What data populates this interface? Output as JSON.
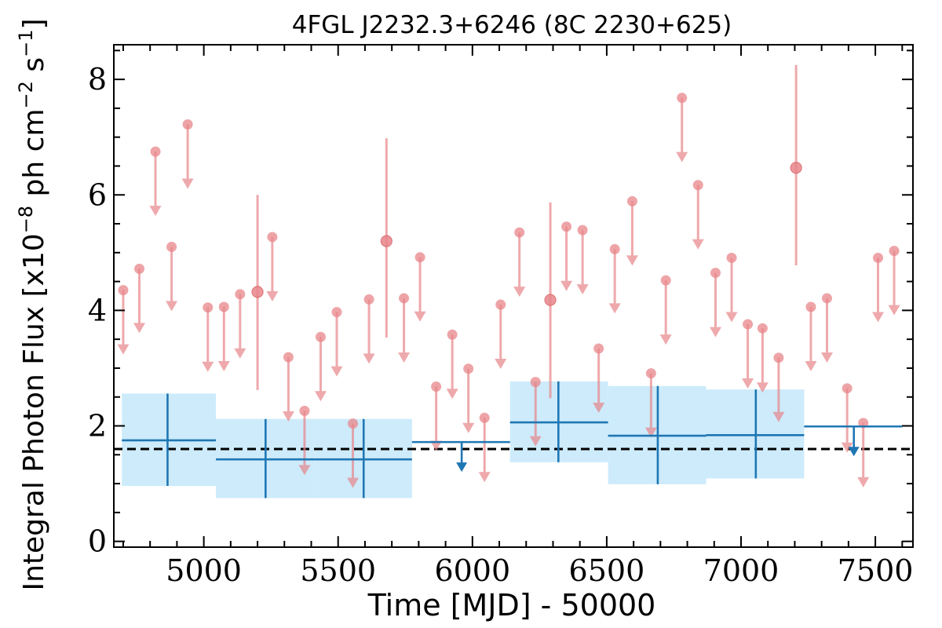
{
  "chart_data": {
    "type": "scatter",
    "title": "4FGL J2232.3+6246 (8C 2230+625)",
    "xlabel": "Time [MJD] - 50000",
    "ylabel": "Integral Photon Flux [x10^-8 ph cm^-2 s^-1]",
    "ylabel_parts": {
      "main": "Integral Photon Flux [x10",
      "exp1": "−8",
      "mid": " ph cm",
      "exp2": "−2",
      "mid2": " s",
      "exp3": "−1",
      "end": "]"
    },
    "xlim": [
      4665,
      7640
    ],
    "ylim": [
      -0.1,
      8.6
    ],
    "xticks": [
      5000,
      5500,
      6000,
      6500,
      7000,
      7500
    ],
    "yticks": [
      0,
      2,
      4,
      6,
      8
    ],
    "grid": false,
    "reference_level": 1.6,
    "colors": {
      "short_bins": "#e8868a",
      "long_bins": "#1f77b4",
      "band_fill": "#cdebfb",
      "reference_line": "#000000"
    },
    "short_bins": {
      "upper_limits": [
        [
          4700,
          4.35
        ],
        [
          4760,
          4.72
        ],
        [
          4820,
          6.75
        ],
        [
          4880,
          5.1
        ],
        [
          4940,
          7.22
        ],
        [
          5015,
          4.05
        ],
        [
          5075,
          4.06
        ],
        [
          5135,
          4.28
        ],
        [
          5255,
          5.27
        ],
        [
          5315,
          3.19
        ],
        [
          5375,
          2.26
        ],
        [
          5435,
          3.54
        ],
        [
          5495,
          3.97
        ],
        [
          5555,
          2.04
        ],
        [
          5615,
          4.19
        ],
        [
          5745,
          4.21
        ],
        [
          5805,
          4.92
        ],
        [
          5865,
          2.68
        ],
        [
          5925,
          3.58
        ],
        [
          5985,
          2.99
        ],
        [
          6045,
          2.14
        ],
        [
          6105,
          4.1
        ],
        [
          6175,
          5.35
        ],
        [
          6235,
          2.76
        ],
        [
          6350,
          5.45
        ],
        [
          6410,
          5.39
        ],
        [
          6470,
          3.34
        ],
        [
          6530,
          5.06
        ],
        [
          6595,
          5.89
        ],
        [
          6665,
          2.91
        ],
        [
          6720,
          4.52
        ],
        [
          6780,
          7.68
        ],
        [
          6840,
          6.17
        ],
        [
          6905,
          4.65
        ],
        [
          6965,
          4.91
        ],
        [
          7025,
          3.76
        ],
        [
          7080,
          3.69
        ],
        [
          7140,
          3.18
        ],
        [
          7260,
          4.06
        ],
        [
          7320,
          4.21
        ],
        [
          7395,
          2.65
        ],
        [
          7455,
          2.05
        ],
        [
          7510,
          4.91
        ],
        [
          7570,
          5.03
        ]
      ],
      "detections": [
        {
          "x": 5200,
          "y": 4.32,
          "ylo": 2.62,
          "yhi": 6.0
        },
        {
          "x": 5680,
          "y": 5.2,
          "ylo": 3.53,
          "yhi": 6.98
        },
        {
          "x": 6290,
          "y": 4.18,
          "ylo": 2.48,
          "yhi": 5.87
        },
        {
          "x": 7205,
          "y": 6.47,
          "ylo": 4.78,
          "yhi": 8.25
        }
      ]
    },
    "long_bins": {
      "detections": [
        {
          "x": 4865,
          "xlo": 4695,
          "xhi": 5045,
          "y": 1.75,
          "ylo": 0.96,
          "yhi": 2.56
        },
        {
          "x": 5230,
          "xlo": 5045,
          "xhi": 5415,
          "y": 1.42,
          "ylo": 0.75,
          "yhi": 2.12
        },
        {
          "x": 5595,
          "xlo": 5415,
          "xhi": 5775,
          "y": 1.42,
          "ylo": 0.75,
          "yhi": 2.12
        },
        {
          "x": 6320,
          "xlo": 6140,
          "xhi": 6505,
          "y": 2.06,
          "ylo": 1.37,
          "yhi": 2.77
        },
        {
          "x": 6690,
          "xlo": 6505,
          "xhi": 6870,
          "y": 1.83,
          "ylo": 0.99,
          "yhi": 2.69
        },
        {
          "x": 7055,
          "xlo": 6870,
          "xhi": 7235,
          "y": 1.84,
          "ylo": 1.09,
          "yhi": 2.63
        }
      ],
      "upper_limits": [
        {
          "x": 5960,
          "xlo": 5775,
          "xhi": 6140,
          "y": 1.72
        },
        {
          "x": 7420,
          "xlo": 7235,
          "xhi": 7600,
          "y": 1.99
        }
      ]
    }
  }
}
